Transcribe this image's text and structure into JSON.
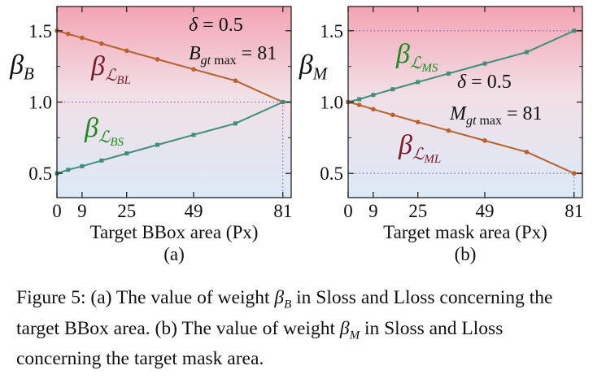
{
  "colors": {
    "bl_line": "#b8612c",
    "bs_line": "#3f8f7a",
    "bl_label": "#7a1a2a",
    "bs_label": "#1f8a1f",
    "guide": "#6a4fd8",
    "bg_top": "#f3a3b3",
    "bg_bottom": "#dce9f7"
  },
  "chart_data": [
    {
      "type": "line",
      "panel_label": "(a)",
      "xlabel": "Target BBox area (Px)",
      "ylabel": "β_B",
      "xticks": [
        0,
        9,
        25,
        49,
        81
      ],
      "yticks": [
        0.5,
        1.0,
        1.5
      ],
      "ytick_labels": [
        "0.5",
        "1.0",
        "1.5"
      ],
      "xlim": [
        0,
        84
      ],
      "ylim": [
        0.33,
        1.67
      ],
      "delta_text": "δ = 0.5",
      "max_text": "B",
      "max_sub": "gt max",
      "max_value_text": "= 81",
      "series": [
        {
          "name": "β_L_BL",
          "label_base": "β",
          "label_sub": "ℒ",
          "label_subsub": "BL",
          "color": "#b8612c",
          "x": [
            0,
            4,
            9,
            16,
            25,
            36,
            49,
            64,
            81,
            84
          ],
          "y": [
            1.5,
            1.478,
            1.45,
            1.41,
            1.36,
            1.3,
            1.23,
            1.15,
            1.0,
            1.0
          ]
        },
        {
          "name": "β_L_BS",
          "label_base": "β",
          "label_sub": "ℒ",
          "label_subsub": "BS",
          "color": "#3f8f7a",
          "x": [
            0,
            4,
            9,
            16,
            25,
            36,
            49,
            64,
            81,
            84
          ],
          "y": [
            0.5,
            0.525,
            0.55,
            0.59,
            0.64,
            0.7,
            0.77,
            0.85,
            1.0,
            1.0
          ]
        }
      ]
    },
    {
      "type": "line",
      "panel_label": "(b)",
      "xlabel": "Target mask area (Px)",
      "ylabel": "β_M",
      "xticks": [
        0,
        9,
        25,
        49,
        81
      ],
      "yticks": [
        0.5,
        1.0,
        1.5
      ],
      "ytick_labels": [
        "0.5",
        "1.0",
        "1.5"
      ],
      "xlim": [
        0,
        84
      ],
      "ylim": [
        0.33,
        1.67
      ],
      "delta_text": "δ = 0.5",
      "max_text": "M",
      "max_sub": "gt max",
      "max_value_text": "= 81",
      "series": [
        {
          "name": "β_L_MS",
          "label_base": "β",
          "label_sub": "ℒ",
          "label_subsub": "MS",
          "color": "#3f8f7a",
          "x": [
            0,
            4,
            9,
            16,
            25,
            36,
            49,
            64,
            81,
            84
          ],
          "y": [
            1.0,
            1.02,
            1.05,
            1.09,
            1.14,
            1.2,
            1.27,
            1.35,
            1.5,
            1.5
          ]
        },
        {
          "name": "β_L_ML",
          "label_base": "β",
          "label_sub": "ℒ",
          "label_subsub": "ML",
          "color": "#b8612c",
          "x": [
            0,
            4,
            9,
            16,
            25,
            36,
            49,
            64,
            81,
            84
          ],
          "y": [
            1.0,
            0.98,
            0.95,
            0.91,
            0.86,
            0.8,
            0.73,
            0.65,
            0.5,
            0.5
          ]
        }
      ]
    }
  ],
  "caption": {
    "part1": "Figure 5: (a) The value of weight ",
    "beta": "β",
    "sub_b": "B",
    "part2": " in Sloss and Lloss concerning the target BBox area. (b) The value of weight ",
    "sub_m": "M",
    "part3": " in Sloss and Lloss concerning the target mask area."
  }
}
